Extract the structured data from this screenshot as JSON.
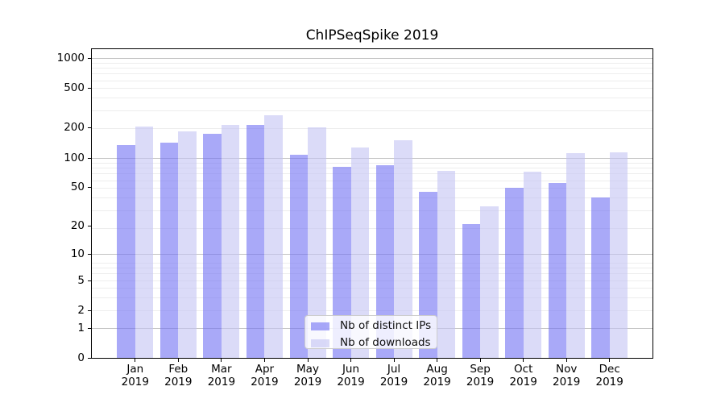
{
  "chart_data": {
    "type": "bar",
    "title": "ChIPSeqSpike 2019",
    "x_months": [
      "Jan",
      "Feb",
      "Mar",
      "Apr",
      "May",
      "Jun",
      "Jul",
      "Aug",
      "Sep",
      "Oct",
      "Nov",
      "Dec"
    ],
    "x_year": "2019",
    "series": [
      {
        "key": "distinct-ips",
        "name": "Nb of distinct IPs",
        "color": "rgba(112,112,243,0.6)",
        "values": [
          134,
          141,
          174,
          215,
          107,
          80,
          84,
          45,
          21,
          49,
          55,
          39
        ]
      },
      {
        "key": "downloads",
        "name": "Nb of downloads",
        "color": "rgba(195,195,243,0.6)",
        "values": [
          205,
          185,
          213,
          268,
          201,
          126,
          150,
          74,
          32,
          72,
          110,
          112
        ]
      }
    ],
    "yticks": [
      0,
      1,
      2,
      5,
      10,
      20,
      50,
      100,
      200,
      500,
      1000
    ],
    "yscale": "log1p",
    "ylim": [
      0,
      1230
    ],
    "grid": "both",
    "legend_position": "lower center"
  },
  "colors": {
    "background": "#ffffff",
    "spine": "#000000",
    "major_grid": "#c3c3c3",
    "minor_grid": "#ededed",
    "bar_distinct_ips": "rgba(112,112,243,0.6)",
    "bar_downloads": "rgba(195,195,243,0.6)",
    "legend_bg": "rgba(255,255,255,0.8)",
    "legend_border": "#cccccc",
    "text": "#000000"
  }
}
